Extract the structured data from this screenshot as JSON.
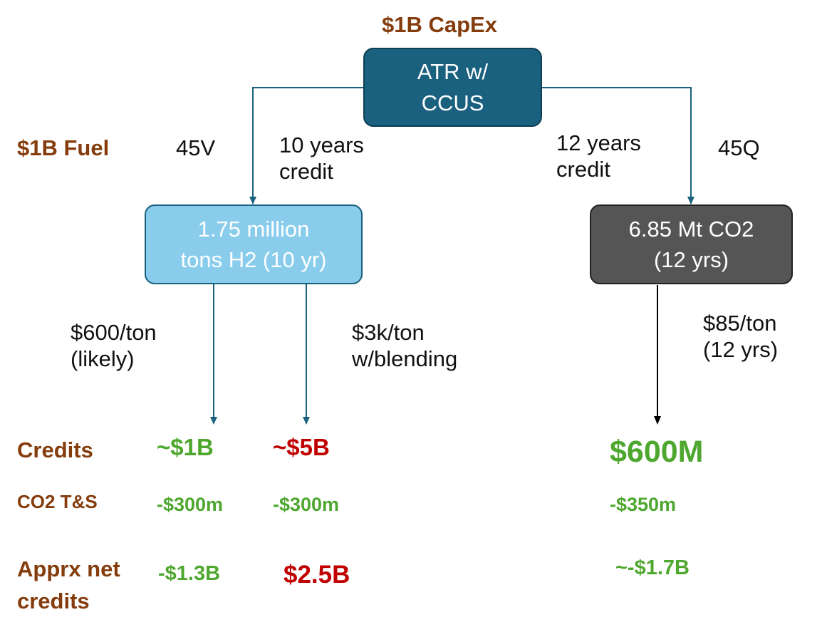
{
  "colors": {
    "label_brown": "#843C0C",
    "credit_green": "#4EA72E",
    "credit_red": "#C00000",
    "atr_box_fill": "#1A607F",
    "atr_box_border": "#0F3F55",
    "h2_box_fill": "#89CCEC",
    "h2_box_border": "#1A607F",
    "co2_box_fill": "#555555",
    "co2_box_border": "#222222",
    "connector_blue": "#1A607F",
    "connector_black": "#000000"
  },
  "top": {
    "capex_label": "$1B CapEx",
    "root_box": {
      "line1": "ATR w/",
      "line2": "CCUS"
    }
  },
  "left_branch": {
    "fuel_label": "$1B Fuel",
    "credit_code": "45V",
    "duration": {
      "line1": "10 years",
      "line2": "credit"
    },
    "box": {
      "line1": "1.75 million",
      "line2": "tons H2 (10 yr)"
    },
    "rate_likely": {
      "line1": "$600/ton",
      "line2": "(likely)"
    },
    "rate_blending": {
      "line1": "$3k/ton",
      "line2": "w/blending"
    }
  },
  "right_branch": {
    "duration": {
      "line1": "12 years",
      "line2": "credit"
    },
    "credit_code": "45Q",
    "box": {
      "line1": "6.85 Mt CO2",
      "line2": "(12 yrs)"
    },
    "rate": {
      "line1": "$85/ton",
      "line2": "(12 yrs)"
    }
  },
  "summary": {
    "rows": {
      "credits": "Credits",
      "transport_storage": "CO2 T&S",
      "net": {
        "line1": "Apprx net",
        "line2": "credits"
      }
    },
    "h2_likely": {
      "credits": "~$1B",
      "ts": "-$300m",
      "net": "-$1.3B"
    },
    "h2_blending": {
      "credits": "~$5B",
      "ts": "-$300m",
      "net": "$2.5B"
    },
    "co2": {
      "credits": "$600M",
      "ts": "-$350m",
      "net": "~-$1.7B"
    }
  }
}
